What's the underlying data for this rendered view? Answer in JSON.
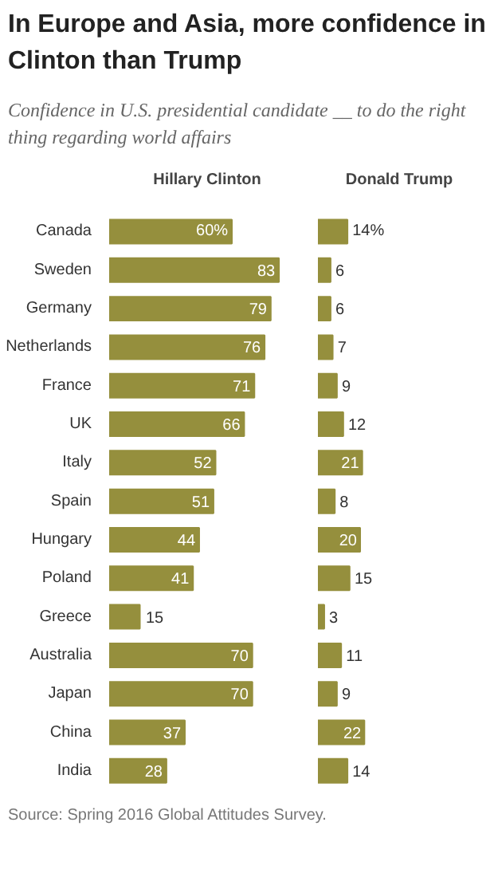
{
  "chart_data": [
    {
      "type": "bar",
      "orientation": "horizontal",
      "title": "Hillary Clinton",
      "subtitle": "In Europe and Asia, more confidence in Clinton than Trump",
      "annotations": [
        "Confidence in U.S. presidential candidate __ to do the right thing regarding world affairs",
        "Source: Spring 2016 Global Attitudes Survey."
      ],
      "tick_labels": "y",
      "categories": [
        "Canada",
        "Sweden",
        "Germany",
        "Netherlands",
        "France",
        "UK",
        "Italy",
        "Spain",
        "Hungary",
        "Poland",
        "Greece",
        "Australia",
        "Japan",
        "China",
        "India"
      ],
      "values": [
        60,
        83,
        79,
        76,
        71,
        66,
        52,
        51,
        44,
        41,
        15,
        70,
        70,
        37,
        28
      ],
      "value_labels": [
        "60%",
        "83",
        "79",
        "76",
        "71",
        "66",
        "52",
        "51",
        "44",
        "41",
        "15",
        "70",
        "70",
        "37",
        "28"
      ],
      "color": "#958f3d"
    },
    {
      "type": "bar",
      "orientation": "horizontal",
      "title": "Donald Trump",
      "tick_labels": false,
      "values": [
        14,
        6,
        6,
        7,
        9,
        12,
        21,
        8,
        20,
        15,
        3,
        11,
        9,
        22,
        14
      ],
      "value_labels": [
        "14%",
        "6",
        "6",
        "7",
        "9",
        "12",
        "21",
        "8",
        "20",
        "15",
        "3",
        "11",
        "9",
        "22",
        "14"
      ],
      "color": "#958f3d"
    }
  ]
}
